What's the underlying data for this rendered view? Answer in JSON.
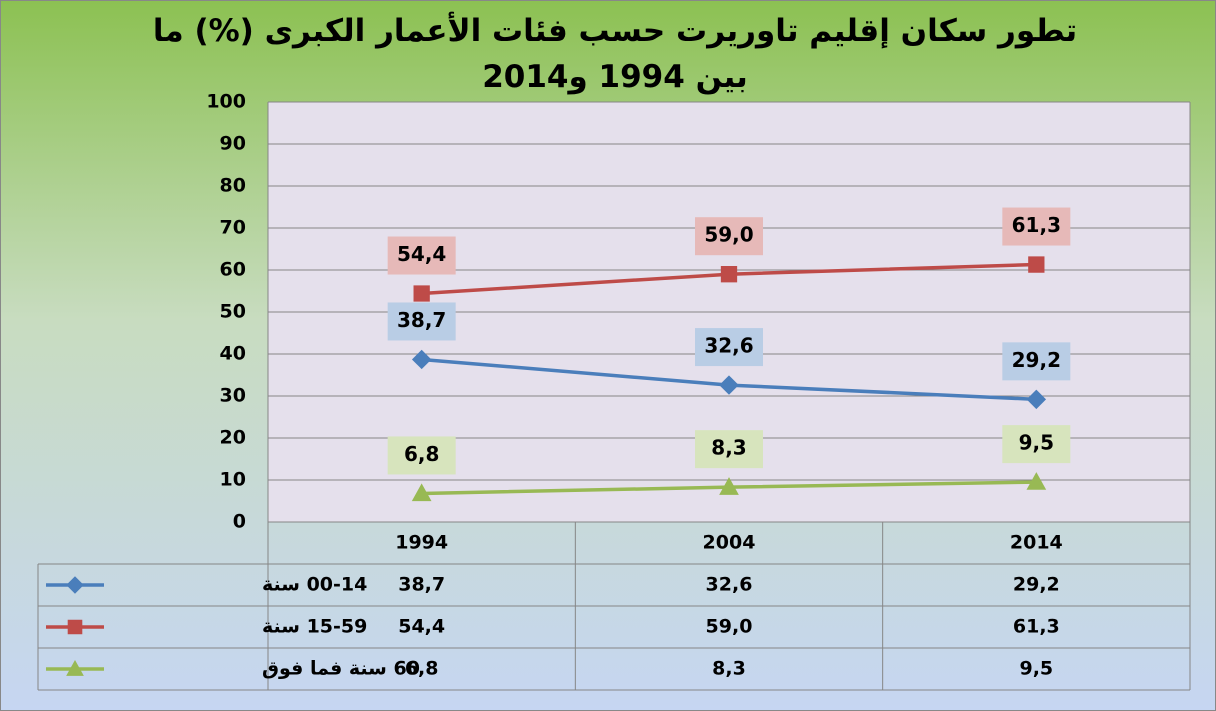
{
  "chart_data": {
    "type": "line",
    "title": "تطور سكان إقليم تاوريرت حسب فئات الأعمار الكبرى (%) ما بين 1994 و2014",
    "categories": [
      "1994",
      "2004",
      "2014"
    ],
    "series": [
      {
        "name": "00-14 سنة",
        "color": "#4a7ebb",
        "marker": "diamond",
        "label_color": "#b9cde5",
        "values": [
          38.7,
          32.6,
          29.2
        ],
        "value_labels": [
          "38,7",
          "32,6",
          "29,2"
        ]
      },
      {
        "name": "15-59 سنة",
        "color": "#be4b48",
        "marker": "square",
        "label_color": "#e6b9b8",
        "values": [
          54.4,
          59.0,
          61.3
        ],
        "value_labels": [
          "54,4",
          "59,0",
          "61,3"
        ]
      },
      {
        "name": "60 سنة فما فوق",
        "color": "#98b954",
        "marker": "triangle",
        "label_color": "#d7e4bd",
        "values": [
          6.8,
          8.3,
          9.5
        ],
        "value_labels": [
          "6,8",
          "8,3",
          "9,5"
        ]
      }
    ],
    "ylim": [
      0,
      100
    ],
    "yticks": [
      0,
      10,
      20,
      30,
      40,
      50,
      60,
      70,
      80,
      90,
      100
    ],
    "grid": true,
    "data_table": true
  }
}
